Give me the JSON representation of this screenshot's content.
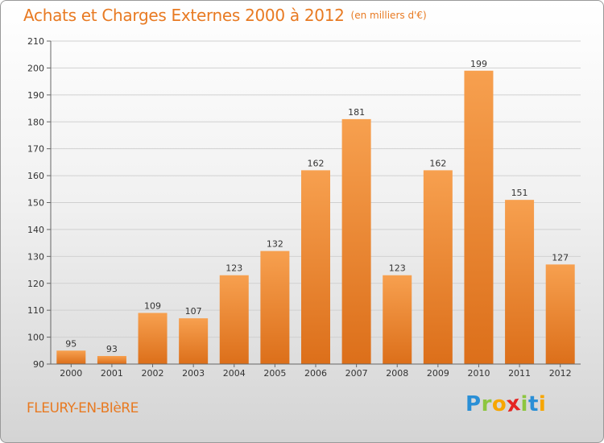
{
  "header": {
    "title": "Achats et Charges Externes 2000 à 2012",
    "subtitle": "(en milliers d'€)"
  },
  "footer": {
    "commune": "FLEURY-EN-BIèRE",
    "logo_letters": [
      {
        "char": "P",
        "color": "#2a8fd6"
      },
      {
        "char": "r",
        "color": "#8dc63f"
      },
      {
        "char": "o",
        "color": "#f7a600"
      },
      {
        "char": "x",
        "color": "#e52421"
      },
      {
        "char": "i",
        "color": "#8dc63f"
      },
      {
        "char": "t",
        "color": "#2a8fd6"
      },
      {
        "char": "i",
        "color": "#f7a600"
      }
    ]
  },
  "chart_data": {
    "type": "bar",
    "categories": [
      "2000",
      "2001",
      "2002",
      "2003",
      "2004",
      "2005",
      "2006",
      "2007",
      "2008",
      "2009",
      "2010",
      "2011",
      "2012"
    ],
    "values": [
      95,
      93,
      109,
      107,
      123,
      132,
      162,
      181,
      123,
      162,
      199,
      151,
      127
    ],
    "data_labels": [
      "95",
      "93",
      "109",
      "107",
      "123",
      "132",
      "162",
      "181",
      "123",
      "162",
      "199",
      "151",
      "127"
    ],
    "ylim": [
      90,
      210
    ],
    "yticks": [
      90,
      100,
      110,
      120,
      130,
      140,
      150,
      160,
      170,
      180,
      190,
      200,
      210
    ],
    "ytick_labels": [
      "90",
      "100",
      "110",
      "120",
      "130",
      "140",
      "150",
      "160",
      "170",
      "180",
      "190",
      "200",
      "210"
    ],
    "grid": true,
    "colors": {
      "bar_light": "#f7a04f",
      "bar_dark": "#dc6f1a",
      "text": "#333333",
      "grid": "#d0d0d0",
      "axis": "#666666"
    }
  }
}
